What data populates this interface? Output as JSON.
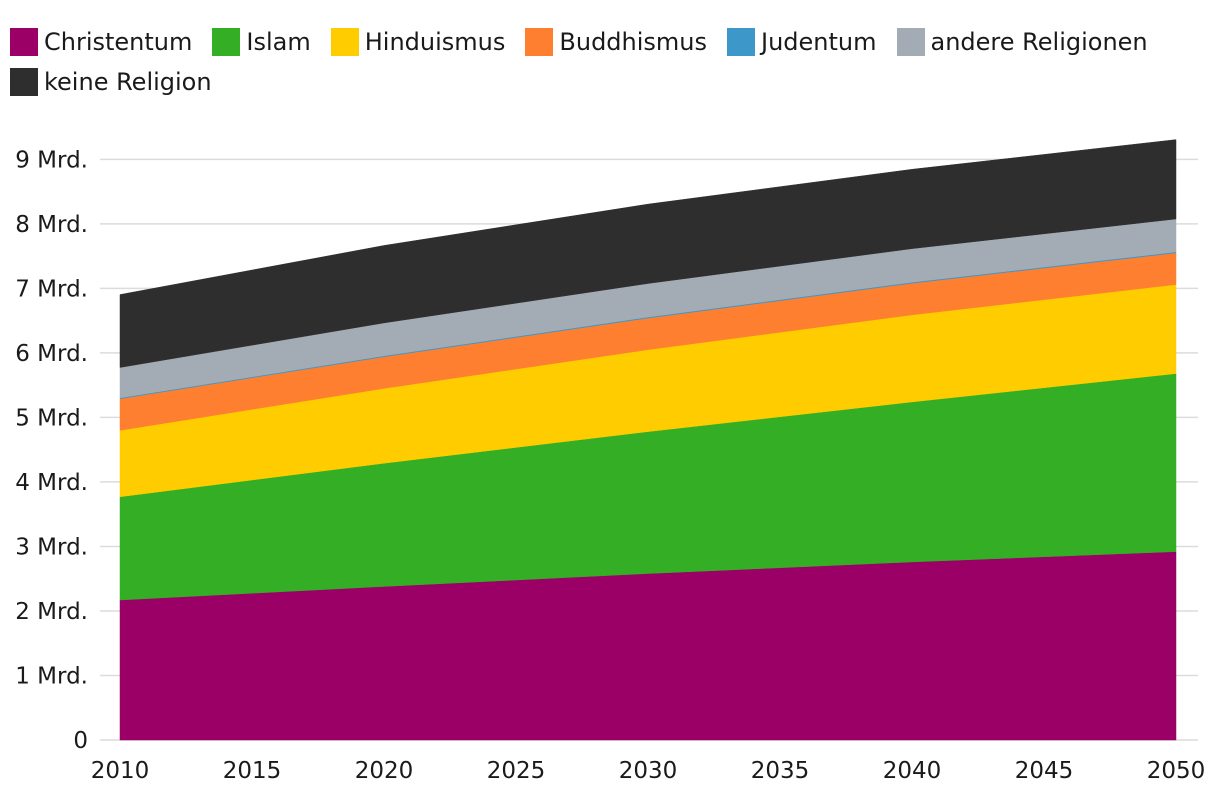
{
  "chart_data": {
    "type": "area",
    "stacked": true,
    "x": [
      2010,
      2020,
      2030,
      2040,
      2050
    ],
    "x_ticks": [
      "2010",
      "2015",
      "2020",
      "2025",
      "2030",
      "2035",
      "2040",
      "2045",
      "2050"
    ],
    "x_tick_values": [
      2010,
      2015,
      2020,
      2025,
      2030,
      2035,
      2040,
      2045,
      2050
    ],
    "y_ticks": [
      "0",
      "1 Mrd.",
      "2 Mrd.",
      "3 Mrd.",
      "4 Mrd.",
      "5 Mrd.",
      "6 Mrd.",
      "7 Mrd.",
      "8 Mrd.",
      "9 Mrd."
    ],
    "y_tick_values": [
      0,
      1,
      2,
      3,
      4,
      5,
      6,
      7,
      8,
      9
    ],
    "ylim": [
      0,
      9.3
    ],
    "xlim": [
      2010,
      2050
    ],
    "grid": true,
    "legend_position": "top-left",
    "series": [
      {
        "name": "Christentum",
        "color": "#9b0066",
        "values": [
          2.17,
          2.38,
          2.58,
          2.76,
          2.92
        ]
      },
      {
        "name": "Islam",
        "color": "#33ae25",
        "values": [
          1.6,
          1.91,
          2.2,
          2.48,
          2.76
        ]
      },
      {
        "name": "Hinduismus",
        "color": "#ffcc00",
        "values": [
          1.03,
          1.16,
          1.27,
          1.35,
          1.38
        ]
      },
      {
        "name": "Buddhismus",
        "color": "#ff7f30",
        "values": [
          0.49,
          0.49,
          0.49,
          0.49,
          0.49
        ]
      },
      {
        "name": "Judentum",
        "color": "#3d97c9",
        "values": [
          0.014,
          0.015,
          0.016,
          0.016,
          0.016
        ]
      },
      {
        "name": "andere Religionen",
        "color": "#a3acb4",
        "values": [
          0.47,
          0.51,
          0.52,
          0.52,
          0.51
        ]
      },
      {
        "name": "keine Religion",
        "color": "#2e2e2e",
        "values": [
          1.13,
          1.2,
          1.23,
          1.23,
          1.23
        ]
      }
    ]
  }
}
